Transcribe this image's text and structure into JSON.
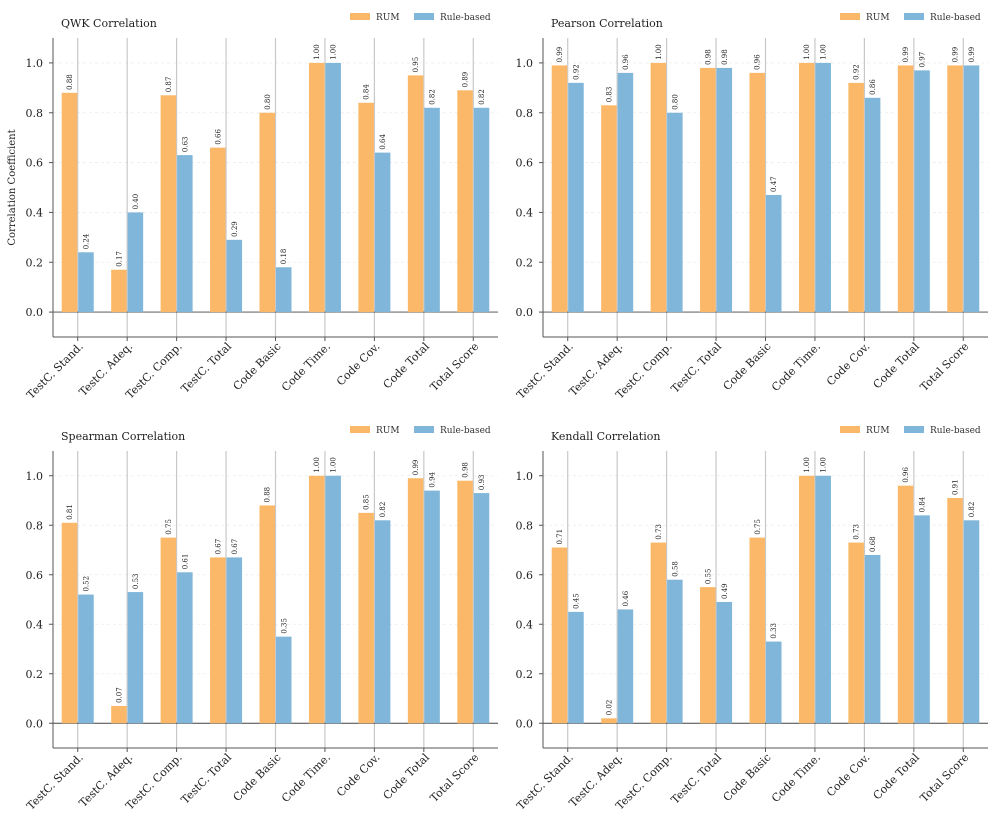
{
  "colors": {
    "rum": "#fbb868",
    "rule": "#80b6d9",
    "axis": "#555555",
    "vline": "#c8c8c8",
    "grid": "#ececec"
  },
  "chart_data": [
    {
      "type": "bar",
      "title": "QWK Correlation",
      "ylabel": "Correlation Coefficient",
      "ylim": [
        -0.1,
        1.1
      ],
      "yticks": [
        "0.0",
        "0.2",
        "0.4",
        "0.6",
        "0.8",
        "1.0"
      ],
      "categories": [
        "TestC. Stand.",
        "TestC. Adeq.",
        "TestC. Comp.",
        "TestC. Total",
        "Code Basic",
        "Code Time.",
        "Code Cov.",
        "Code Total",
        "Total Score"
      ],
      "series": [
        {
          "name": "RUM",
          "values": [
            0.88,
            0.17,
            0.87,
            0.66,
            0.8,
            1.0,
            0.84,
            0.95,
            0.89
          ],
          "labels": [
            "0.88",
            "0.17",
            "0.87",
            "0.66",
            "0.80",
            "1.00",
            "0.84",
            "0.95",
            "0.89"
          ]
        },
        {
          "name": "Rule-based",
          "values": [
            0.24,
            0.4,
            0.63,
            0.29,
            0.18,
            1.0,
            0.64,
            0.82,
            0.82
          ],
          "labels": [
            "0.24",
            "0.40",
            "0.63",
            "0.29",
            "0.18",
            "1.00",
            "0.64",
            "0.82",
            "0.82"
          ]
        }
      ],
      "legend": "top-right"
    },
    {
      "type": "bar",
      "title": "Pearson Correlation",
      "ylabel": "",
      "ylim": [
        -0.1,
        1.1
      ],
      "yticks": [
        "0.0",
        "0.2",
        "0.4",
        "0.6",
        "0.8",
        "1.0"
      ],
      "categories": [
        "TestC. Stand.",
        "TestC. Adeq.",
        "TestC. Comp.",
        "TestC. Total",
        "Code Basic",
        "Code Time.",
        "Code Cov.",
        "Code Total",
        "Total Score"
      ],
      "series": [
        {
          "name": "RUM",
          "values": [
            0.99,
            0.83,
            1.0,
            0.98,
            0.96,
            1.0,
            0.92,
            0.99,
            0.99
          ],
          "labels": [
            "0.99",
            "0.83",
            "1.00",
            "0.98",
            "0.96",
            "1.00",
            "0.92",
            "0.99",
            "0.99"
          ]
        },
        {
          "name": "Rule-based",
          "values": [
            0.92,
            0.96,
            0.8,
            0.98,
            0.47,
            1.0,
            0.86,
            0.97,
            0.99
          ],
          "labels": [
            "0.92",
            "0.96",
            "0.80",
            "0.98",
            "0.47",
            "1.00",
            "0.86",
            "0.97",
            "0.99"
          ]
        }
      ],
      "legend": "top-right"
    },
    {
      "type": "bar",
      "title": "Spearman Correlation",
      "ylabel": "",
      "ylim": [
        -0.1,
        1.1
      ],
      "yticks": [
        "0.0",
        "0.2",
        "0.4",
        "0.6",
        "0.8",
        "1.0"
      ],
      "categories": [
        "TestC. Stand.",
        "TestC. Adeq.",
        "TestC. Comp.",
        "TestC. Total",
        "Code Basic",
        "Code Time.",
        "Code Cov.",
        "Code Total",
        "Total Score"
      ],
      "series": [
        {
          "name": "RUM",
          "values": [
            0.81,
            0.07,
            0.75,
            0.67,
            0.88,
            1.0,
            0.85,
            0.99,
            0.98
          ],
          "labels": [
            "0.81",
            "0.07",
            "0.75",
            "0.67",
            "0.88",
            "1.00",
            "0.85",
            "0.99",
            "0.98"
          ]
        },
        {
          "name": "Rule-based",
          "values": [
            0.52,
            0.53,
            0.61,
            0.67,
            0.35,
            1.0,
            0.82,
            0.94,
            0.93
          ],
          "labels": [
            "0.52",
            "0.53",
            "0.61",
            "0.67",
            "0.35",
            "1.00",
            "0.82",
            "0.94",
            "0.93"
          ]
        }
      ],
      "legend": "top-right"
    },
    {
      "type": "bar",
      "title": "Kendall Correlation",
      "ylabel": "",
      "ylim": [
        -0.1,
        1.1
      ],
      "yticks": [
        "0.0",
        "0.2",
        "0.4",
        "0.6",
        "0.8",
        "1.0"
      ],
      "categories": [
        "TestC. Stand.",
        "TestC. Adeq.",
        "TestC. Comp.",
        "TestC. Total",
        "Code Basic",
        "Code Time.",
        "Code Cov.",
        "Code Total",
        "Total Score"
      ],
      "series": [
        {
          "name": "RUM",
          "values": [
            0.71,
            0.02,
            0.73,
            0.55,
            0.75,
            1.0,
            0.73,
            0.96,
            0.91
          ],
          "labels": [
            "0.71",
            "0.02",
            "0.73",
            "0.55",
            "0.75",
            "1.00",
            "0.73",
            "0.96",
            "0.91"
          ]
        },
        {
          "name": "Rule-based",
          "values": [
            0.45,
            0.46,
            0.58,
            0.49,
            0.33,
            1.0,
            0.68,
            0.84,
            0.82
          ],
          "labels": [
            "0.45",
            "0.46",
            "0.58",
            "0.49",
            "0.33",
            "1.00",
            "0.68",
            "0.84",
            "0.82"
          ]
        }
      ],
      "legend": "top-right"
    }
  ]
}
